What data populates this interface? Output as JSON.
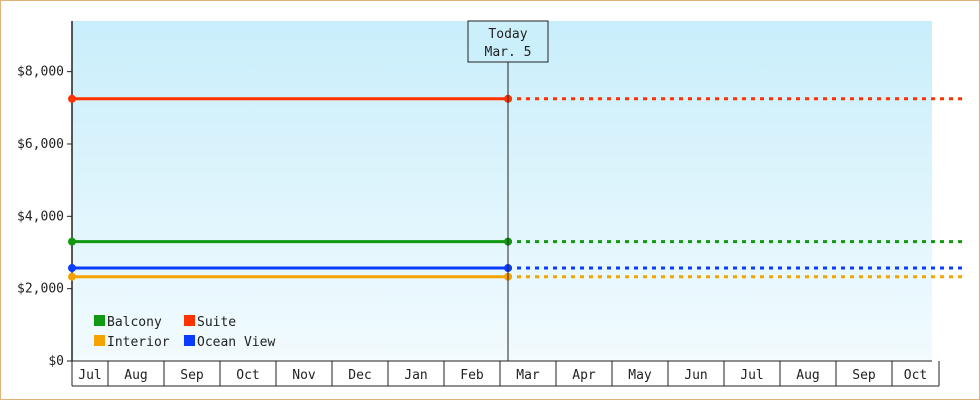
{
  "chart_data": {
    "type": "line",
    "title": "",
    "xlabel": "",
    "ylabel": "",
    "ylim": [
      0,
      9400
    ],
    "yticks": [
      {
        "value": 0,
        "label": "$0"
      },
      {
        "value": 2000,
        "label": "$2,000"
      },
      {
        "value": 4000,
        "label": "$4,000"
      },
      {
        "value": 6000,
        "label": "$6,000"
      },
      {
        "value": 8000,
        "label": "$8,000"
      }
    ],
    "months": [
      "Jul",
      "Aug",
      "Sep",
      "Oct",
      "Nov",
      "Dec",
      "Jan",
      "Feb",
      "Mar",
      "Apr",
      "May",
      "Jun",
      "Jul",
      "Aug",
      "Sep",
      "Oct"
    ],
    "today": {
      "line1": "Today",
      "line2": "Mar. 5",
      "month_index": 8,
      "day_fraction": 0.0
    },
    "series": [
      {
        "name": "Balcony",
        "color": "#119911",
        "value": 3300
      },
      {
        "name": "Suite",
        "color": "#ff3300",
        "value": 7250
      },
      {
        "name": "Interior",
        "color": "#f5a300",
        "value": 2330
      },
      {
        "name": "Ocean View",
        "color": "#0a3cff",
        "value": 2570
      }
    ],
    "grid": false,
    "legend_position": "bottom-left",
    "colors": {
      "plot_top": "#c9eefb",
      "plot_bottom": "#f2fbfe",
      "border": "#e2b27c"
    }
  }
}
